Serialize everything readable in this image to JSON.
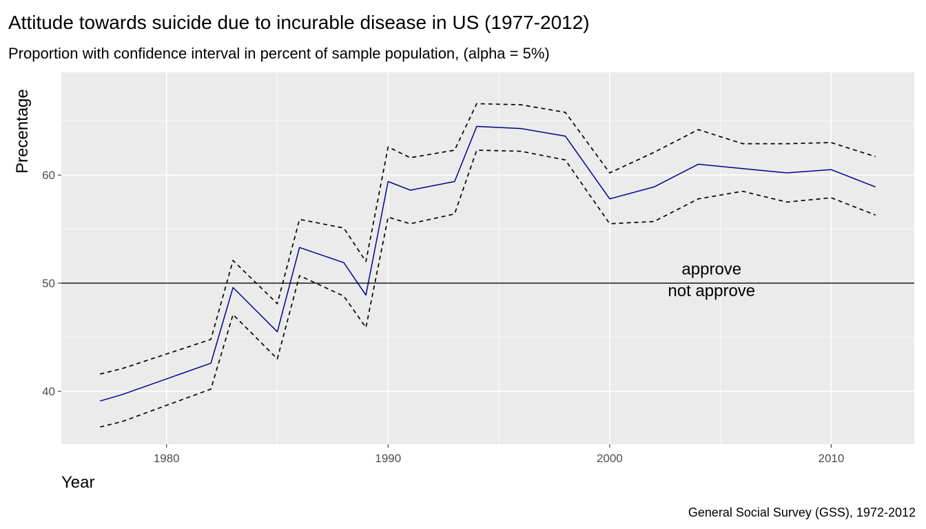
{
  "chart_data": {
    "type": "line",
    "title": "Attitude towards suicide due to incurable disease in US (1977-2012)",
    "subtitle": "Proportion with confidence interval in percent of sample population, (alpha = 5%)",
    "xlabel": "Year",
    "ylabel": "Precentage",
    "caption": "General Social Survey (GSS), 1972-2012",
    "xlim": [
      1975.25,
      1813.75
    ],
    "ylim": [
      35.1,
      69.5
    ],
    "x_ticks": [
      1980,
      1990,
      2000,
      2010
    ],
    "y_ticks": [
      40,
      50,
      60
    ],
    "grid": true,
    "reference_line": 50,
    "annotations": [
      {
        "text": "approve",
        "x": 2004.6,
        "y": 50.8
      },
      {
        "text": "not approve",
        "x": 2004.6,
        "y": 48.8
      }
    ],
    "x": [
      1977,
      1978,
      1982,
      1983,
      1985,
      1986,
      1988,
      1989,
      1990,
      1991,
      1993,
      1994,
      1996,
      1998,
      2000,
      2002,
      2004,
      2006,
      2008,
      2010,
      2012
    ],
    "series": [
      {
        "role": "estimate",
        "color": "#00008b",
        "dash": false,
        "values": [
          39.1,
          39.7,
          42.6,
          49.6,
          45.5,
          53.3,
          51.9,
          48.9,
          59.4,
          58.6,
          59.4,
          64.5,
          64.3,
          63.6,
          57.8,
          58.9,
          61.0,
          60.6,
          60.2,
          60.5,
          58.9
        ]
      },
      {
        "role": "upper",
        "color": "#000000",
        "dash": true,
        "values": [
          41.6,
          42.1,
          44.8,
          52.1,
          48.1,
          55.9,
          55.1,
          52.0,
          62.6,
          61.6,
          62.3,
          66.6,
          66.5,
          65.8,
          60.2,
          62.1,
          64.2,
          62.9,
          62.9,
          63.0,
          61.7
        ]
      },
      {
        "role": "lower",
        "color": "#000000",
        "dash": true,
        "values": [
          36.7,
          37.2,
          40.2,
          47.1,
          43.0,
          50.7,
          48.8,
          45.9,
          56.1,
          55.5,
          56.4,
          62.3,
          62.2,
          61.4,
          55.5,
          55.7,
          57.8,
          58.5,
          57.5,
          57.9,
          56.3
        ]
      }
    ]
  }
}
